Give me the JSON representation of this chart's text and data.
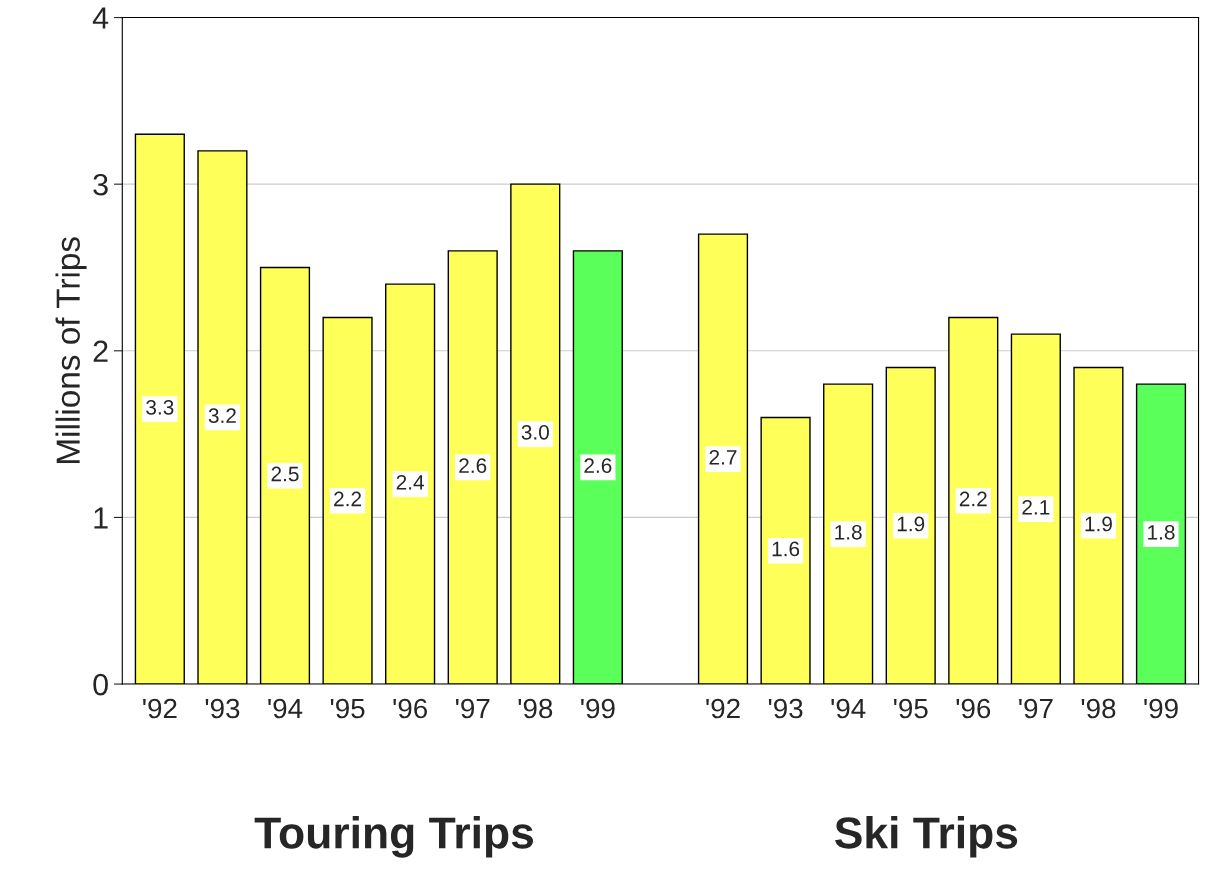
{
  "chart_data": {
    "type": "bar",
    "ylabel": "Millions of Trips",
    "categories": [
      "'92",
      "'93",
      "'94",
      "'95",
      "'96",
      "'97",
      "'98",
      "'99",
      null,
      "'92",
      "'93",
      "'94",
      "'95",
      "'96",
      "'97",
      "'98",
      "'99"
    ],
    "values": [
      3.3,
      3.2,
      2.5,
      2.2,
      2.4,
      2.6,
      3.0,
      2.6,
      null,
      2.7,
      1.6,
      1.8,
      1.9,
      2.2,
      2.1,
      1.9,
      1.8
    ],
    "colors": [
      "#ffff5a",
      "#ffff5a",
      "#ffff5a",
      "#ffff5a",
      "#ffff5a",
      "#ffff5a",
      "#ffff5a",
      "#5aff5a",
      null,
      "#ffff5a",
      "#ffff5a",
      "#ffff5a",
      "#ffff5a",
      "#ffff5a",
      "#ffff5a",
      "#ffff5a",
      "#5aff5a"
    ],
    "ylim": [
      0,
      4
    ],
    "yticks": [
      0,
      1,
      2,
      3,
      4
    ],
    "grid": "y",
    "value_labels": [
      "3.3",
      "3.2",
      "2.5",
      "2.2",
      "2.4",
      "2.6",
      "3.0",
      "2.6",
      null,
      "2.7",
      "1.6",
      "1.8",
      "1.9",
      "2.2",
      "2.1",
      "1.9",
      "1.8"
    ],
    "annotations": [
      "Touring Trips",
      "Ski Trips"
    ]
  }
}
